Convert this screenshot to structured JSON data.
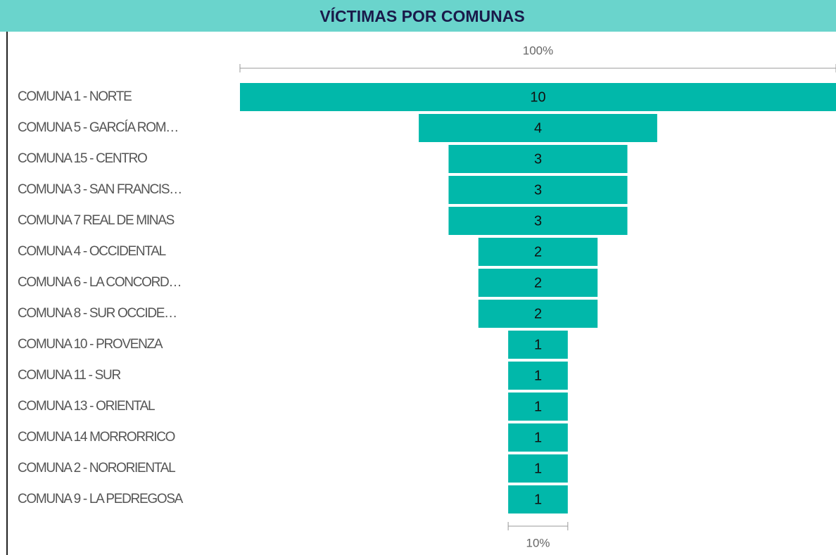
{
  "chart_data": {
    "type": "funnel",
    "title": "VÍCTIMAS POR COMUNAS",
    "categories": [
      "COMUNA 1 - NORTE",
      "COMUNA 5 - GARCÍA ROM…",
      "COMUNA 15 - CENTRO",
      "COMUNA 3 - SAN FRANCIS…",
      "COMUNA 7 REAL DE MINAS",
      "COMUNA 4 - OCCIDENTAL",
      "COMUNA 6 - LA CONCORD…",
      "COMUNA 8 - SUR OCCIDE…",
      "COMUNA 10 - PROVENZA",
      "COMUNA 11 - SUR",
      "COMUNA 13 - ORIENTAL",
      "COMUNA 14 MORRORRICO",
      "COMUNA 2 - NORORIENTAL",
      "COMUNA 9 - LA PEDREGOSA"
    ],
    "values": [
      10,
      4,
      3,
      3,
      3,
      2,
      2,
      2,
      1,
      1,
      1,
      1,
      1,
      1
    ],
    "color": "#01b8aa",
    "top_percent_label": "100%",
    "bottom_percent_label": "10%"
  }
}
